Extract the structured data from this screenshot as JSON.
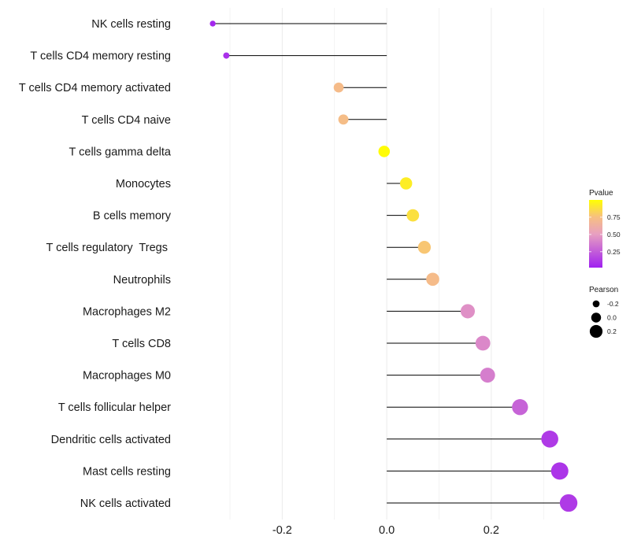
{
  "chart_data": {
    "type": "lollipop",
    "title": "",
    "xlabel": "",
    "ylabel": "",
    "xlim": [
      -0.395,
      0.36
    ],
    "xticks": [
      -0.2,
      0.0,
      0.2
    ],
    "xtick_labels": [
      "-0.2",
      "0.0",
      "0.2"
    ],
    "grid": true,
    "categories": [
      "NK cells resting",
      "T cells CD4 memory resting",
      "T cells CD4 memory activated",
      "T cells CD4 naive",
      "T cells gamma delta",
      "Monocytes",
      "B cells memory",
      "T cells regulatory  Tregs ",
      "Neutrophils",
      "Macrophages M2",
      "T cells CD8",
      "Macrophages M0",
      "T cells follicular helper",
      "Dendritic cells activated",
      "Mast cells resting",
      "NK cells activated"
    ],
    "values": [
      -0.333,
      -0.307,
      -0.092,
      -0.083,
      -0.005,
      0.037,
      0.05,
      0.072,
      0.088,
      0.155,
      0.184,
      0.193,
      0.255,
      0.312,
      0.331,
      0.348
    ],
    "pvalues": [
      0.05,
      0.08,
      0.72,
      0.73,
      0.99,
      0.93,
      0.88,
      0.78,
      0.72,
      0.45,
      0.42,
      0.38,
      0.28,
      0.12,
      0.1,
      0.12
    ],
    "legend": {
      "position": "right",
      "color_title": "Pvalue",
      "color_ticks": [
        0.25,
        0.5,
        0.75
      ],
      "color_tick_labels": [
        "0.25",
        "0.50",
        "0.75"
      ],
      "color_range": [
        0.02,
        1.0
      ],
      "size_title": "Pearson",
      "size_values": [
        -0.2,
        0.0,
        0.2
      ],
      "size_labels": [
        "-0.2",
        "0.0",
        "0.2"
      ]
    },
    "colors": {
      "low": "#a020f0",
      "mid": "#f0a0a8",
      "high": "#ffff00",
      "stem": "#000000",
      "grid": "#ebebeb"
    }
  }
}
